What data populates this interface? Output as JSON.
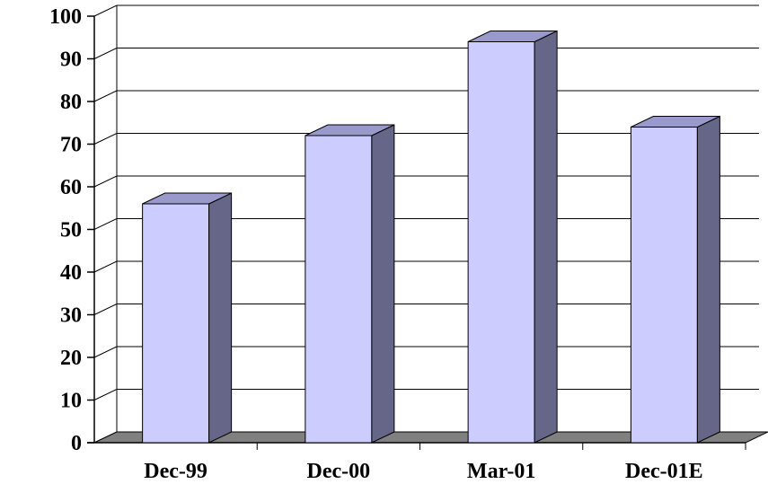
{
  "chart_data": {
    "type": "bar",
    "title": "",
    "xlabel": "",
    "ylabel": "",
    "categories": [
      "Dec-99",
      "Dec-00",
      "Mar-01",
      "Dec-01E"
    ],
    "values": [
      56,
      72,
      94,
      74
    ],
    "ylim": [
      0,
      100
    ],
    "yticks": [
      "0",
      "10",
      "20",
      "30",
      "40",
      "50",
      "60",
      "70",
      "80",
      "90",
      "100"
    ],
    "grid": true,
    "legend": "none",
    "style": "3d-column",
    "colors": {
      "bar_front": "#ccccff",
      "bar_side": "#666688",
      "bar_top": "#9999cc",
      "floor": "#808080",
      "grid": "#000000"
    }
  }
}
